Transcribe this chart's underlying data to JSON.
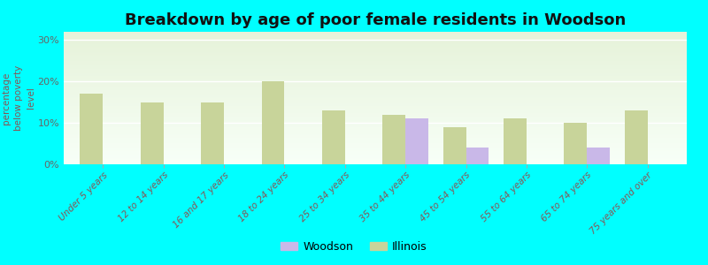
{
  "title": "Breakdown by age of poor female residents in Woodson",
  "ylabel": "percentage\nbelow poverty\nlevel",
  "categories": [
    "Under 5 years",
    "12 to 14 years",
    "16 and 17 years",
    "18 to 24 years",
    "25 to 34 years",
    "35 to 44 years",
    "45 to 54 years",
    "55 to 64 years",
    "65 to 74 years",
    "75 years and over"
  ],
  "woodson": [
    0,
    0,
    0,
    0,
    0,
    11,
    4,
    0,
    4,
    0
  ],
  "illinois": [
    17,
    15,
    15,
    20,
    13,
    12,
    9,
    11,
    10,
    13
  ],
  "woodson_color": "#c9b8e8",
  "illinois_color": "#c8d49a",
  "background_color": "#00ffff",
  "ylim": [
    0,
    32
  ],
  "yticks": [
    0,
    10,
    20,
    30
  ],
  "ytick_labels": [
    "0%",
    "10%",
    "20%",
    "30%"
  ],
  "title_fontsize": 13,
  "axis_label_fontsize": 7.5,
  "tick_fontsize": 8,
  "legend_fontsize": 9,
  "bar_width": 0.38
}
